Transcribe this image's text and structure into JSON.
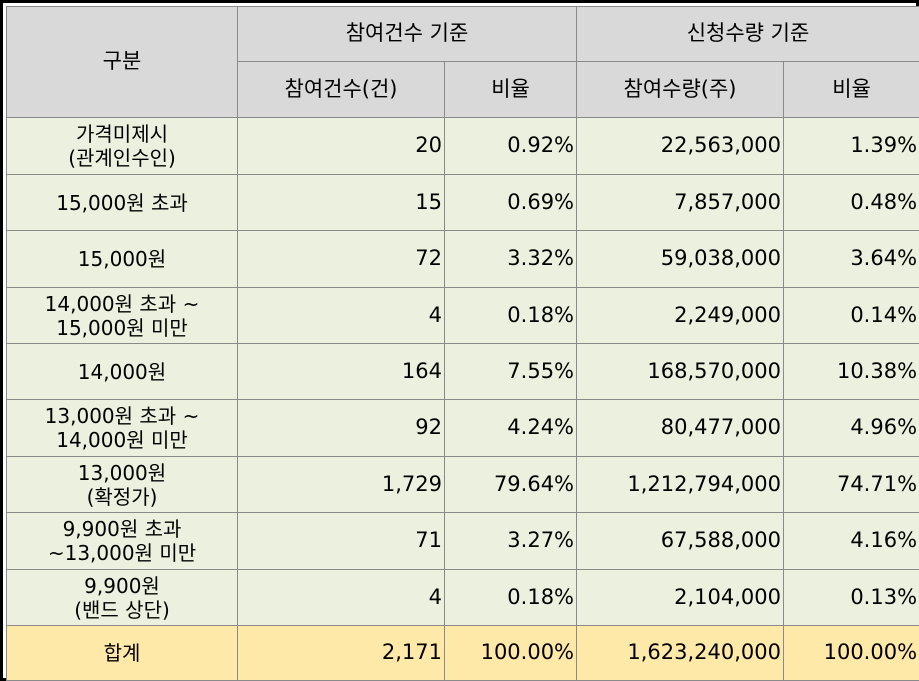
{
  "header": {
    "category": "구분",
    "group_participation": "참여건수 기준",
    "group_quantity": "신청수량 기준",
    "col_count": "참여건수(건)",
    "col_count_ratio": "비율",
    "col_quantity": "참여수량(주)",
    "col_quantity_ratio": "비율"
  },
  "rows": [
    {
      "category": "가격미제시\n(관계인수인)",
      "count": "20",
      "count_ratio": "0.92%",
      "quantity": "22,563,000",
      "quantity_ratio": "1.39%"
    },
    {
      "category": "15,000원 초과",
      "count": "15",
      "count_ratio": "0.69%",
      "quantity": "7,857,000",
      "quantity_ratio": "0.48%"
    },
    {
      "category": "15,000원",
      "count": "72",
      "count_ratio": "3.32%",
      "quantity": "59,038,000",
      "quantity_ratio": "3.64%"
    },
    {
      "category": "14,000원 초과 ~\n15,000원 미만",
      "count": "4",
      "count_ratio": "0.18%",
      "quantity": "2,249,000",
      "quantity_ratio": "0.14%"
    },
    {
      "category": "14,000원",
      "count": "164",
      "count_ratio": "7.55%",
      "quantity": "168,570,000",
      "quantity_ratio": "10.38%"
    },
    {
      "category": "13,000원 초과 ~\n14,000원 미만",
      "count": "92",
      "count_ratio": "4.24%",
      "quantity": "80,477,000",
      "quantity_ratio": "4.96%"
    },
    {
      "category": "13,000원\n(확정가)",
      "count": "1,729",
      "count_ratio": "79.64%",
      "quantity": "1,212,794,000",
      "quantity_ratio": "74.71%"
    },
    {
      "category": "9,900원 초과\n~13,000원 미만",
      "count": "71",
      "count_ratio": "3.27%",
      "quantity": "67,588,000",
      "quantity_ratio": "4.16%"
    },
    {
      "category": "9,900원\n(밴드 상단)",
      "count": "4",
      "count_ratio": "0.18%",
      "quantity": "2,104,000",
      "quantity_ratio": "0.13%"
    }
  ],
  "total": {
    "category": "합계",
    "count": "2,171",
    "count_ratio": "100.00%",
    "quantity": "1,623,240,000",
    "quantity_ratio": "100.00%"
  },
  "colors": {
    "header_bg": "#d9d9d9",
    "row_bg": "#ebf1de",
    "total_bg": "#ffe9a8",
    "border": "#8a8a8a",
    "frame": "#000000"
  }
}
